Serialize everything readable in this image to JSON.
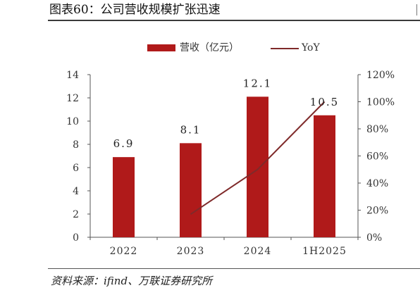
{
  "header": {
    "title": "图表60：公司营收规模扩张迅速"
  },
  "legend": {
    "bar_label": "营收（亿元）",
    "line_label": "YoY"
  },
  "footer": {
    "source": "资料来源：ifind、万联证券研究所"
  },
  "chart_data": {
    "type": "bar",
    "categories": [
      "2022",
      "2023",
      "2024",
      "1H2025"
    ],
    "series": [
      {
        "name": "营收（亿元）",
        "type": "bar",
        "axis": "left",
        "values": [
          6.9,
          8.1,
          12.1,
          10.5
        ],
        "data_labels": [
          "6.9",
          "8.1",
          "12.1",
          "10.5"
        ],
        "color": "#b01a1a"
      },
      {
        "name": "YoY",
        "type": "line",
        "axis": "right",
        "values": [
          null,
          17,
          50,
          100
        ],
        "color": "#7f2a2a"
      }
    ],
    "y_left": {
      "ylim": [
        0,
        14
      ],
      "ticks": [
        0,
        2,
        4,
        6,
        8,
        10,
        12,
        14
      ],
      "tick_labels": [
        "0",
        "2",
        "4",
        "6",
        "8",
        "10",
        "12",
        "14"
      ]
    },
    "y_right": {
      "ylim": [
        0,
        120
      ],
      "ticks": [
        0,
        20,
        40,
        60,
        80,
        100,
        120
      ],
      "tick_labels": [
        "0%",
        "20%",
        "40%",
        "60%",
        "80%",
        "100%",
        "120%"
      ]
    },
    "grid": false,
    "legend_position": "top-center"
  },
  "colors": {
    "bar": "#b01a1a",
    "line": "#7f2a2a",
    "axis": "#555555"
  }
}
